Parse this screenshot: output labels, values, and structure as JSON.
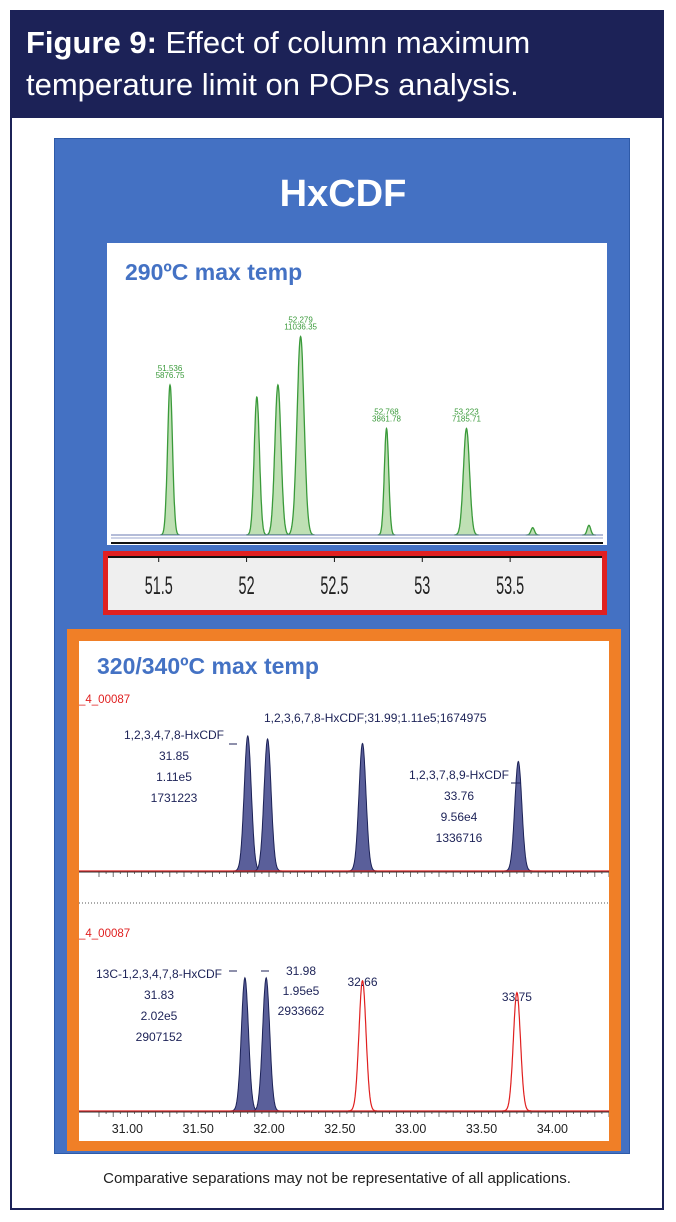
{
  "header": {
    "figure_label": "Figure 9:",
    "caption": "Effect of column maximum temperature limit on POPs analysis."
  },
  "section_title": "HxCDF",
  "footnote": "Comparative separations may not be representative of all applications.",
  "colors": {
    "navy": "#1c2257",
    "blue_panel": "#4471c3",
    "orange_panel": "#f07f27",
    "green": "#3a9a3a",
    "green_fill": "#bfe0b4",
    "purple": "#5a5f9a",
    "red": "#e02020"
  },
  "chart_data": [
    {
      "type": "line",
      "label": "290ºC max temp",
      "xlim": [
        51.2,
        54.0
      ],
      "x_ticks": [
        "51.5",
        "52",
        "52.5",
        "53",
        "53.5"
      ],
      "peaks": [
        {
          "rt": 51.536,
          "height": 0.62,
          "width": 0.028,
          "labels": [
            "51.536",
            "5876.75"
          ]
        },
        {
          "rt": 52.03,
          "height": 0.57,
          "width": 0.03,
          "labels": []
        },
        {
          "rt": 52.15,
          "height": 0.62,
          "width": 0.035,
          "labels": []
        },
        {
          "rt": 52.279,
          "height": 0.82,
          "width": 0.04,
          "labels": [
            "52.279",
            "11036.35"
          ]
        },
        {
          "rt": 52.768,
          "height": 0.44,
          "width": 0.025,
          "labels": [
            "52.768",
            "3861.78"
          ]
        },
        {
          "rt": 53.223,
          "height": 0.44,
          "width": 0.035,
          "labels": [
            "53.223",
            "7185.71"
          ]
        },
        {
          "rt": 53.6,
          "height": 0.03,
          "width": 0.02,
          "labels": []
        },
        {
          "rt": 53.92,
          "height": 0.04,
          "width": 0.02,
          "labels": []
        }
      ]
    },
    {
      "type": "line",
      "label": "320/340ºC max temp",
      "xlim": [
        30.8,
        34.4
      ],
      "x_ticks": [
        "31.00",
        "31.50",
        "32.00",
        "32.50",
        "33.00",
        "33.50",
        "34.00"
      ],
      "traces": [
        {
          "id": "_4_00087",
          "peaks": [
            {
              "rt": 31.85,
              "height": 0.9,
              "filled": true
            },
            {
              "rt": 31.99,
              "height": 0.88,
              "filled": true
            },
            {
              "rt": 32.66,
              "height": 0.85,
              "filled": true
            },
            {
              "rt": 33.76,
              "height": 0.73,
              "filled": true
            }
          ],
          "annotations": [
            {
              "lines": [
                "1,2,3,4,7,8-HxCDF",
                "31.85",
                "1.11e5",
                "1731223"
              ]
            },
            {
              "lines": [
                "1,2,3,6,7,8-HxCDF;31.99;1.11e5;1674975"
              ]
            },
            {
              "lines": [
                "1,2,3,7,8,9-HxCDF",
                "33.76",
                "9.56e4",
                "1336716"
              ]
            }
          ]
        },
        {
          "id": "_4_00087",
          "peaks": [
            {
              "rt": 31.83,
              "height": 0.9,
              "filled": true
            },
            {
              "rt": 31.98,
              "height": 0.9,
              "filled": true
            },
            {
              "rt": 32.66,
              "height": 0.88,
              "filled": false
            },
            {
              "rt": 33.75,
              "height": 0.8,
              "filled": false
            }
          ],
          "annotations": [
            {
              "lines": [
                "13C-1,2,3,4,7,8-HxCDF",
                "31.83",
                "2.02e5",
                "2907152"
              ]
            },
            {
              "lines": [
                "31.98",
                "1.95e5",
                "2933662"
              ]
            },
            {
              "lines": [
                "32.66"
              ]
            },
            {
              "lines": [
                "33.75"
              ]
            }
          ]
        }
      ]
    }
  ]
}
